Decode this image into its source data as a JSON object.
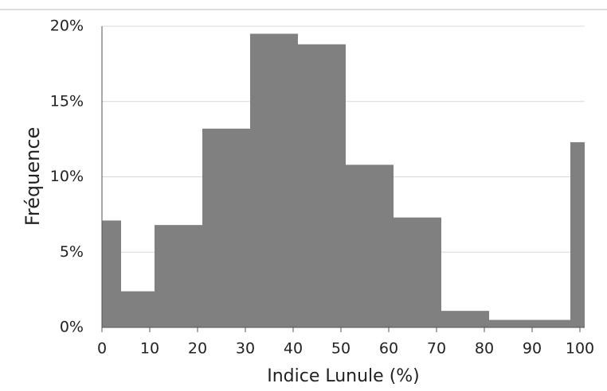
{
  "chart_data": {
    "type": "histogram",
    "xlabel": "Indice Lunule (%)",
    "ylabel": "Fréquence",
    "bins": [
      0,
      4,
      11,
      21,
      31,
      41,
      51,
      61,
      71,
      81,
      98,
      101
    ],
    "values": [
      7.1,
      2.4,
      6.8,
      13.2,
      19.5,
      18.8,
      10.8,
      7.3,
      1.1,
      0.5,
      12.3
    ],
    "color": "#808080",
    "xlim": [
      0,
      101
    ],
    "xticks": [
      0,
      10,
      20,
      30,
      40,
      50,
      60,
      70,
      80,
      90,
      100
    ],
    "ylim": [
      0,
      20
    ],
    "yticks": [
      {
        "value": 0,
        "label": "0%"
      },
      {
        "value": 5,
        "label": "5%"
      },
      {
        "value": 10,
        "label": "10%"
      },
      {
        "value": 15,
        "label": "15%"
      },
      {
        "value": 20,
        "label": "20%"
      }
    ],
    "grid": true
  }
}
